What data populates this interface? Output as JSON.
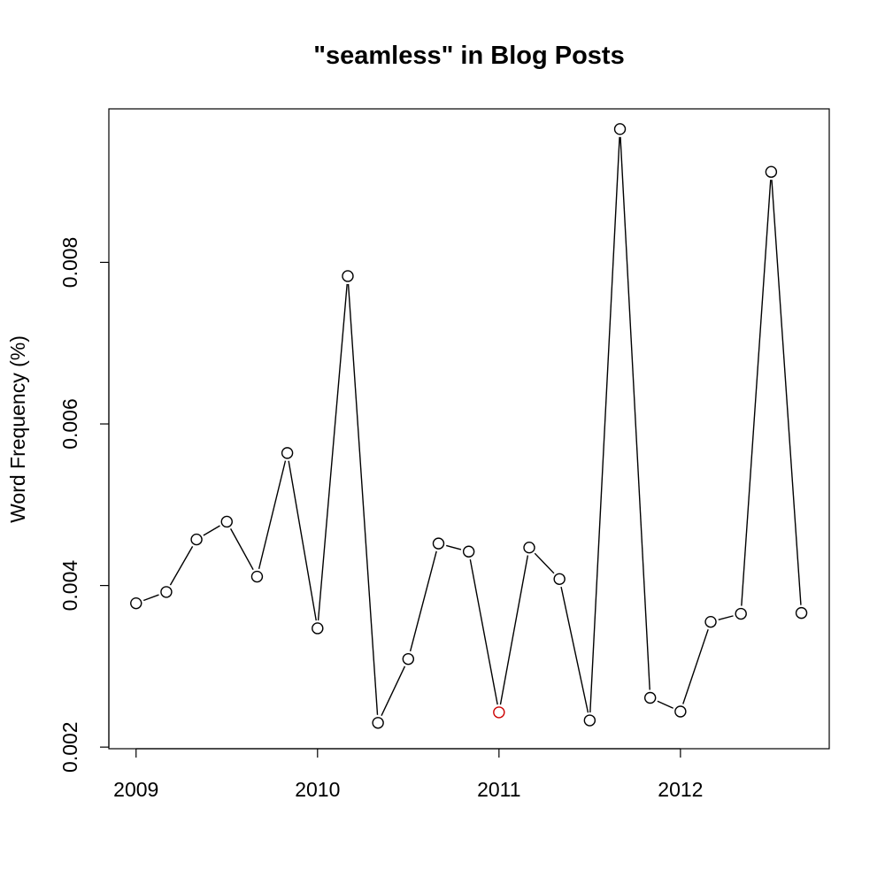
{
  "chart_data": {
    "type": "line",
    "title": "\"seamless\" in Blog Posts",
    "xlabel": "",
    "ylabel": "Word Frequency (%)",
    "xlim": [
      2008.85,
      2012.82
    ],
    "ylim": [
      0.00198,
      0.0099
    ],
    "x_ticks": [
      {
        "value": 2009,
        "label": "2009"
      },
      {
        "value": 2010,
        "label": "2010"
      },
      {
        "value": 2011,
        "label": "2011"
      },
      {
        "value": 2012,
        "label": "2012"
      }
    ],
    "y_ticks": [
      {
        "value": 0.002,
        "label": "0.002"
      },
      {
        "value": 0.004,
        "label": "0.004"
      },
      {
        "value": 0.006,
        "label": "0.006"
      },
      {
        "value": 0.008,
        "label": "0.008"
      }
    ],
    "grid": false,
    "series": [
      {
        "color": "#000000",
        "highlight_color": "#cc0000",
        "highlight_index": 12,
        "x": [
          2009.0,
          2009.1667,
          2009.3333,
          2009.5,
          2009.6667,
          2009.8333,
          2010.0,
          2010.1667,
          2010.3333,
          2010.5,
          2010.6667,
          2010.8333,
          2011.0,
          2011.1667,
          2011.3333,
          2011.5,
          2011.6667,
          2011.8333,
          2012.0,
          2012.1667,
          2012.3333,
          2012.5,
          2012.6667
        ],
        "y": [
          0.00378,
          0.00392,
          0.00457,
          0.00479,
          0.00411,
          0.00564,
          0.00347,
          0.00783,
          0.0023,
          0.00309,
          0.00452,
          0.00442,
          0.00243,
          0.00447,
          0.00408,
          0.00233,
          0.00965,
          0.00261,
          0.00244,
          0.00355,
          0.00365,
          0.00912,
          0.00366
        ]
      }
    ]
  }
}
